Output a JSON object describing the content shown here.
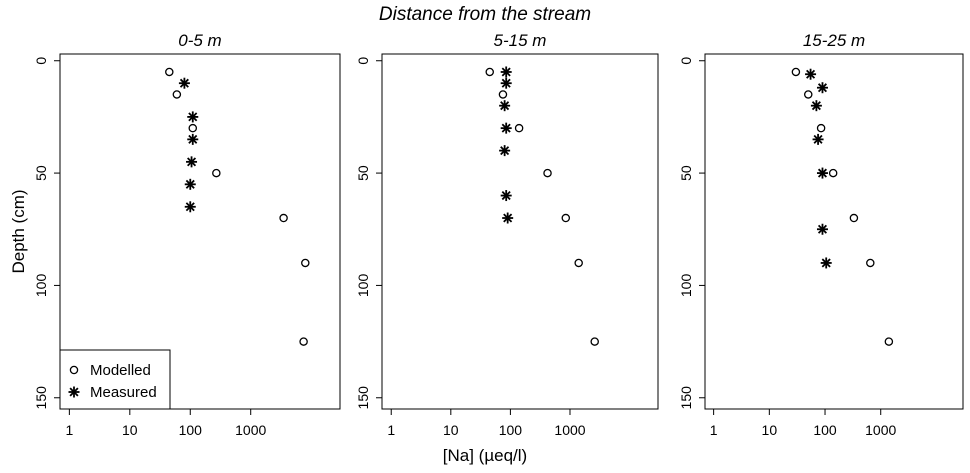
{
  "figure": {
    "suptitle": "Distance from the stream",
    "xlabel": "[Na] (µeq/l)",
    "ylabel": "Depth (cm)"
  },
  "legend": {
    "placement": "bottom-left",
    "entries": [
      {
        "label": "Modelled",
        "marker": "open-circle"
      },
      {
        "label": "Measured",
        "marker": "asterisk"
      }
    ]
  },
  "chart_data": [
    {
      "type": "scatter",
      "title": "0-5 m",
      "xscale": "log",
      "xticks": [
        "1",
        "10",
        "100",
        "1000"
      ],
      "xlim": [
        0.7,
        30000
      ],
      "yticks": [
        "0",
        "50",
        "100",
        "150"
      ],
      "ylim": [
        155,
        -3
      ],
      "y_inverted": true,
      "series": [
        {
          "name": "Modelled",
          "points": [
            [
              45,
              5
            ],
            [
              60,
              15
            ],
            [
              110,
              30
            ],
            [
              270,
              50
            ],
            [
              3500,
              70
            ],
            [
              8000,
              90
            ],
            [
              7500,
              125
            ]
          ]
        },
        {
          "name": "Measured",
          "points": [
            [
              80,
              10
            ],
            [
              110,
              25
            ],
            [
              110,
              35
            ],
            [
              105,
              45
            ],
            [
              100,
              55
            ],
            [
              100,
              65
            ]
          ]
        }
      ]
    },
    {
      "type": "scatter",
      "title": "5-15 m",
      "xscale": "log",
      "xticks": [
        "1",
        "10",
        "100",
        "1000"
      ],
      "xlim": [
        0.7,
        30000
      ],
      "yticks": [
        "0",
        "50",
        "100",
        "150"
      ],
      "ylim": [
        155,
        -3
      ],
      "y_inverted": true,
      "series": [
        {
          "name": "Modelled",
          "points": [
            [
              45,
              5
            ],
            [
              75,
              15
            ],
            [
              140,
              30
            ],
            [
              420,
              50
            ],
            [
              850,
              70
            ],
            [
              1400,
              90
            ],
            [
              2600,
              125
            ]
          ]
        },
        {
          "name": "Measured",
          "points": [
            [
              85,
              5
            ],
            [
              85,
              10
            ],
            [
              80,
              20
            ],
            [
              85,
              30
            ],
            [
              80,
              40
            ],
            [
              85,
              60
            ],
            [
              90,
              70
            ]
          ]
        }
      ]
    },
    {
      "type": "scatter",
      "title": "15-25 m",
      "xscale": "log",
      "xticks": [
        "1",
        "10",
        "100",
        "1000"
      ],
      "xlim": [
        0.7,
        30000
      ],
      "yticks": [
        "0",
        "50",
        "100",
        "150"
      ],
      "ylim": [
        155,
        -3
      ],
      "y_inverted": true,
      "series": [
        {
          "name": "Modelled",
          "points": [
            [
              30,
              5
            ],
            [
              50,
              15
            ],
            [
              85,
              30
            ],
            [
              140,
              50
            ],
            [
              330,
              70
            ],
            [
              650,
              90
            ],
            [
              1400,
              125
            ]
          ]
        },
        {
          "name": "Measured",
          "points": [
            [
              55,
              6
            ],
            [
              90,
              12
            ],
            [
              70,
              20
            ],
            [
              75,
              35
            ],
            [
              90,
              50
            ],
            [
              90,
              75
            ],
            [
              105,
              90
            ]
          ]
        }
      ]
    }
  ]
}
